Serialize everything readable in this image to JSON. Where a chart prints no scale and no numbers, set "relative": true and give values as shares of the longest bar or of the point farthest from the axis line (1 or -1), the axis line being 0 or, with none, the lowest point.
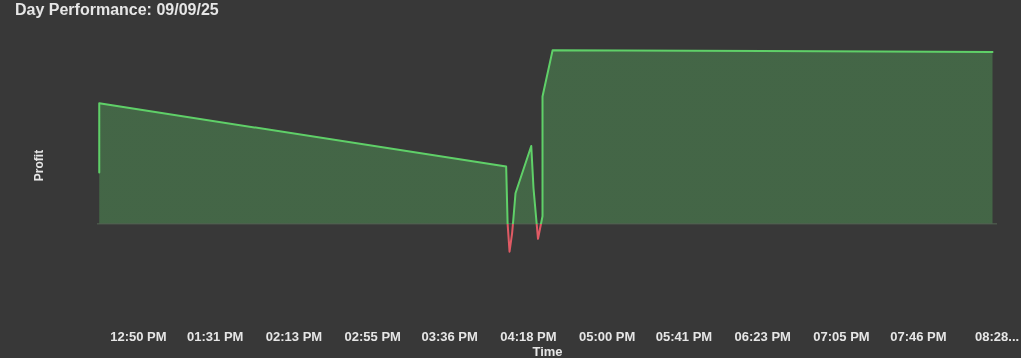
{
  "chart_data": {
    "type": "area",
    "title": "Day Performance: 09/09/25",
    "xlabel": "Time",
    "ylabel": "Profit",
    "relative": true,
    "x": [
      12.49,
      12.49,
      16.107,
      16.12,
      16.137,
      16.16,
      16.172,
      16.19,
      16.33,
      16.35,
      16.39,
      16.43,
      16.43,
      16.52,
      20.43
    ],
    "series": [
      {
        "color": "#5fd068",
        "values": [
          0.296,
          0.694,
          0.33,
          0,
          -0.16,
          -0.053,
          0.035,
          0.176,
          0.448,
          0.205,
          -0.086,
          0.044,
          0.733,
          1.0,
          0.99
        ]
      }
    ],
    "xlim": [
      12.47,
      20.47
    ],
    "xticks": [
      {
        "value": 12.8333,
        "label": "12:50 PM"
      },
      {
        "value": 13.5167,
        "label": "01:31 PM"
      },
      {
        "value": 14.2167,
        "label": "02:13 PM"
      },
      {
        "value": 14.9167,
        "label": "02:55 PM"
      },
      {
        "value": 15.6,
        "label": "03:36 PM"
      },
      {
        "value": 16.3,
        "label": "04:18 PM"
      },
      {
        "value": 17.0,
        "label": "05:00 PM"
      },
      {
        "value": 17.6833,
        "label": "05:41 PM"
      },
      {
        "value": 18.3833,
        "label": "06:23 PM"
      },
      {
        "value": 19.0833,
        "label": "07:05 PM"
      },
      {
        "value": 19.7667,
        "label": "07:46 PM"
      },
      {
        "value": 20.4667,
        "label": "08:28..."
      }
    ],
    "grid": false
  }
}
